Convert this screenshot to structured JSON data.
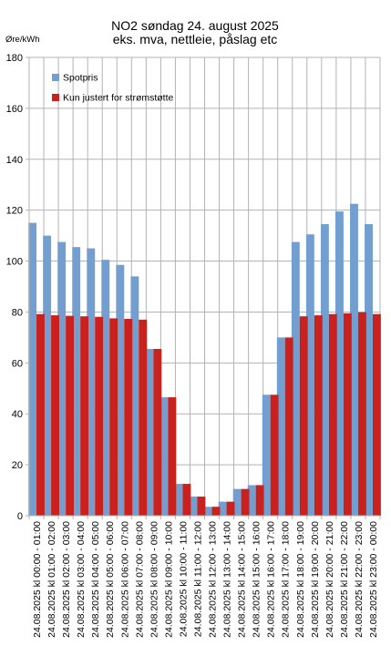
{
  "chart_data": {
    "type": "bar",
    "title": [
      "NO2 søndag 24. august 2025",
      "eks. mva, nettleie, påslag etc"
    ],
    "ylabel": "Øre/kWh",
    "xlabel": "",
    "ylim": [
      0,
      180
    ],
    "yticks": [
      0,
      20,
      40,
      60,
      80,
      100,
      120,
      140,
      160,
      180
    ],
    "grid": true,
    "legend_position": "top-left",
    "categories": [
      "24.08.2025 kl 00:00 - 01:00",
      "24.08.2025 kl 01:00 - 02:00",
      "24.08.2025 kl 02:00 - 03:00",
      "24.08.2025 kl 03:00 - 04:00",
      "24.08.2025 kl 04:00 - 05:00",
      "24.08.2025 kl 05:00 - 06:00",
      "24.08.2025 kl 06:00 - 07:00",
      "24.08.2025 kl 07:00 - 08:00",
      "24.08.2025 kl 08:00 - 09:00",
      "24.08.2025 kl 09:00 - 10:00",
      "24.08.2025 kl 10:00 - 11:00",
      "24.08.2025 kl 11:00 - 12:00",
      "24.08.2025 kl 12:00 - 13:00",
      "24.08.2025 kl 13:00 - 14:00",
      "24.08.2025 kl 14:00 - 15:00",
      "24.08.2025 kl 15:00 - 16:00",
      "24.08.2025 kl 16:00 - 17:00",
      "24.08.2025 kl 17:00 - 18:00",
      "24.08.2025 kl 18:00 - 19:00",
      "24.08.2025 kl 19:00 - 20:00",
      "24.08.2025 kl 20:00 - 21:00",
      "24.08.2025 kl 21:00 - 22:00",
      "24.08.2025 kl 22:00 - 23:00",
      "24.08.2025 kl 23:00 - 00:00"
    ],
    "series": [
      {
        "name": "Spotpris",
        "color": "#729fcf",
        "values": [
          115,
          110,
          107.5,
          105.5,
          105,
          100.5,
          98.5,
          94,
          65.5,
          46.5,
          12.5,
          7.5,
          3.5,
          5.5,
          10.5,
          12,
          47.5,
          70,
          107.5,
          110.5,
          114.5,
          119.5,
          122.5,
          114.5
        ]
      },
      {
        "name": "Kun justert for strømstøtte",
        "color": "#c9211e",
        "values": [
          79.2,
          78.7,
          78.5,
          78.3,
          78.1,
          77.5,
          77.3,
          77,
          65.5,
          46.5,
          12.5,
          7.5,
          3.5,
          5.5,
          10.5,
          12,
          47.5,
          70,
          78.3,
          78.7,
          79.2,
          79.5,
          79.9,
          79.2
        ]
      }
    ]
  }
}
